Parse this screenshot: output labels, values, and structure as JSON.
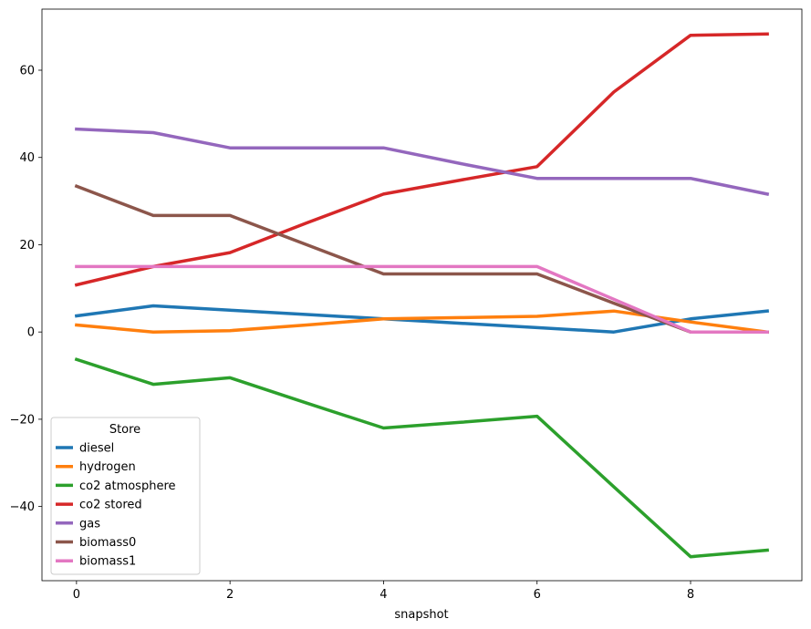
{
  "chart_data": {
    "type": "line",
    "xlabel": "snapshot",
    "ylabel": "",
    "xlim": [
      -0.45,
      9.45
    ],
    "ylim": [
      -57,
      74
    ],
    "xticks": [
      0,
      2,
      4,
      6,
      8
    ],
    "yticks": [
      -40,
      -20,
      0,
      20,
      40,
      60
    ],
    "grid": false,
    "legend": {
      "title": "Store",
      "placement": "lower-left"
    },
    "x": [
      0,
      1,
      2,
      3,
      4,
      5,
      6,
      7,
      8,
      9
    ],
    "series": [
      {
        "name": "diesel",
        "color": "#1f77b4",
        "values": [
          3.7,
          6.0,
          5.0,
          4.0,
          3.0,
          2.0,
          1.0,
          0.0,
          3.0,
          4.8
        ]
      },
      {
        "name": "hydrogen",
        "color": "#ff7f0e",
        "values": [
          1.6,
          0.0,
          0.3,
          1.6,
          3.0,
          3.3,
          3.6,
          4.8,
          2.3,
          0.0
        ]
      },
      {
        "name": "co2 atmosphere",
        "color": "#2ca02c",
        "values": [
          -6.3,
          -12.0,
          -10.5,
          -16.3,
          -22.0,
          -20.7,
          -19.3,
          -35.5,
          -51.5,
          -50.0
        ]
      },
      {
        "name": "co2 stored",
        "color": "#d62728",
        "values": [
          10.8,
          15.0,
          18.2,
          25.0,
          31.6,
          34.8,
          37.9,
          55.0,
          68.0,
          68.3
        ]
      },
      {
        "name": "gas",
        "color": "#9467bd",
        "values": [
          46.5,
          45.7,
          42.2,
          42.2,
          42.2,
          38.6,
          35.2,
          35.2,
          35.2,
          31.6
        ]
      },
      {
        "name": "biomass0",
        "color": "#8c564b",
        "values": [
          33.4,
          26.7,
          26.7,
          20.0,
          13.3,
          13.3,
          13.3,
          6.6,
          0.0,
          0.0
        ]
      },
      {
        "name": "biomass1",
        "color": "#e377c2",
        "values": [
          15.0,
          15.0,
          15.0,
          15.0,
          15.0,
          15.0,
          15.0,
          7.5,
          0.0,
          0.0
        ]
      }
    ]
  }
}
